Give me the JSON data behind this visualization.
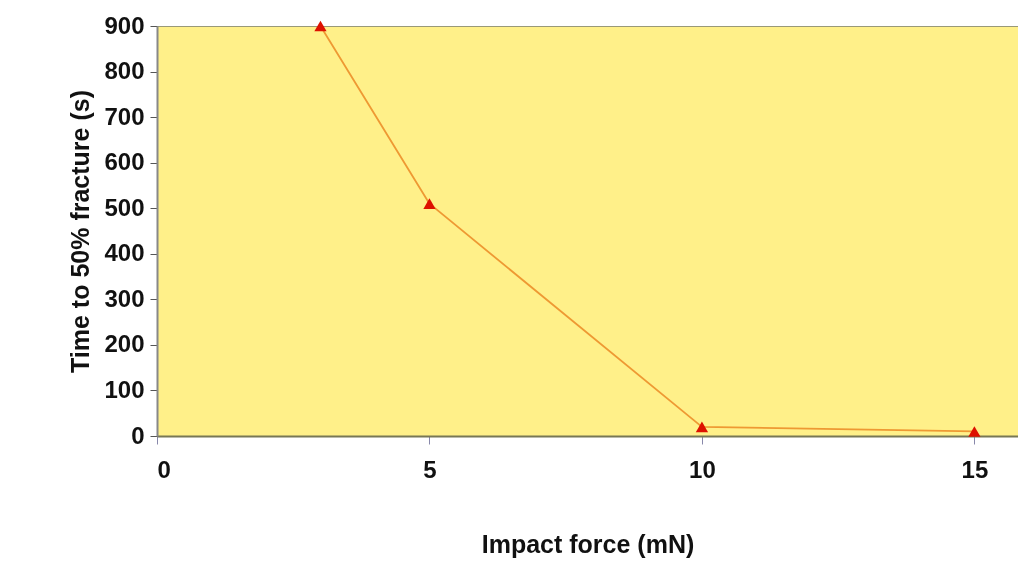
{
  "chart_data": {
    "type": "line",
    "xlabel": "Impact force (mN)",
    "ylabel": "Time to 50% fracture (s)",
    "x": [
      3,
      5,
      10,
      15
    ],
    "series": [
      {
        "color": "#ee9933",
        "values": [
          900,
          510,
          20,
          10
        ]
      }
    ],
    "xlim": [
      0,
      15.8
    ],
    "xticks": [
      0,
      5,
      10,
      15
    ],
    "ylim": [
      0,
      900
    ],
    "yticks": [
      0,
      100,
      200,
      300,
      400,
      500,
      600,
      700,
      800,
      900
    ],
    "grid": false,
    "marker": "triangle",
    "line_style": "solid"
  }
}
